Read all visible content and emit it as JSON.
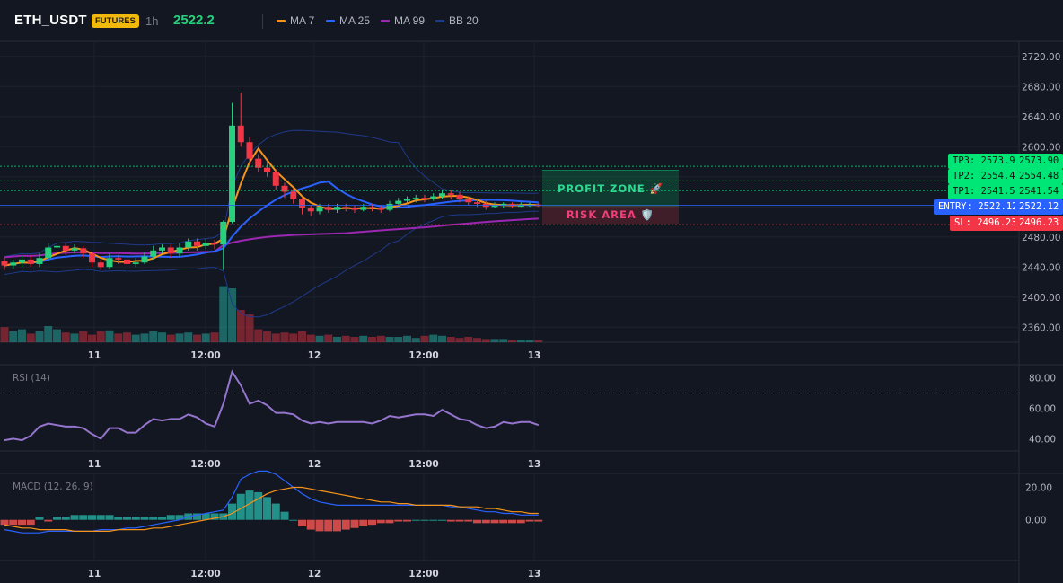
{
  "header": {
    "symbol": "ETH_USDT",
    "badge": "FUTURES",
    "timeframe": "1h",
    "price": "2522.2",
    "legend": [
      {
        "label": "MA 7",
        "color": "#f7931a"
      },
      {
        "label": "MA 25",
        "color": "#2962ff"
      },
      {
        "label": "MA 99",
        "color": "#9c27b0"
      },
      {
        "label": "BB 20",
        "color": "#1e3a8a"
      }
    ]
  },
  "zones": {
    "profit": "PROFIT ZONE 🚀",
    "risk": "RISK AREA 🛡️"
  },
  "levels": {
    "tp3_label": "TP3: 2573.9",
    "tp3_value": "2573.90",
    "tp2_label": "TP2: 2554.48",
    "tp2_value": "2554.48",
    "tp1_label": "TP1: 2541.54",
    "tp1_value": "2541.54",
    "entry_label": "ENTRY: 2522.12",
    "entry_value": "2522.12",
    "sl_label": "SL: 2496.23",
    "sl_value": "2496.23"
  },
  "colors": {
    "up": "#26d07c",
    "down": "#f23645",
    "tp": "#00e676",
    "entry": "#2962ff",
    "sl": "#f23645"
  },
  "chart_data": {
    "type": "candlestick",
    "price_axis": {
      "ticks": [
        "2720.00",
        "2680.00",
        "2640.00",
        "2600.00",
        "2560.00",
        "2520.00",
        "2480.00",
        "2440.00",
        "2400.00",
        "2360.00"
      ],
      "range": [
        2340,
        2740
      ]
    },
    "time_ticks": [
      "11",
      "12:00",
      "12",
      "12:00",
      "13"
    ],
    "rsi": {
      "label": "RSI (14)",
      "ticks": [
        "80.00",
        "60.00",
        "40.00"
      ],
      "range": [
        32,
        88
      ],
      "overbought": 70,
      "values": [
        39,
        40,
        39,
        42,
        48,
        50,
        49,
        48,
        48,
        47,
        43,
        40,
        47,
        47,
        44,
        44,
        49,
        53,
        52,
        53,
        53,
        56,
        54,
        50,
        48,
        63,
        84,
        75,
        63,
        65,
        62,
        57,
        57,
        56,
        52,
        50,
        51,
        50,
        51,
        51,
        51,
        51,
        50,
        52,
        55,
        54,
        55,
        56,
        56,
        55,
        59,
        56,
        53,
        52,
        49,
        47,
        48,
        51,
        50,
        51,
        51,
        49
      ]
    },
    "macd": {
      "label": "MACD (12, 26, 9)",
      "ticks": [
        "20.00",
        "0.00"
      ],
      "range": [
        -25,
        28
      ],
      "macd": [
        -6,
        -7,
        -8,
        -8,
        -8,
        -7,
        -7,
        -7,
        -7,
        -7,
        -7,
        -6,
        -6,
        -6,
        -5,
        -5,
        -4,
        -3,
        -2,
        -1,
        0,
        2,
        3,
        4,
        5,
        6,
        14,
        25,
        28,
        30,
        30,
        28,
        24,
        20,
        16,
        13,
        11,
        10,
        9,
        9,
        9,
        9,
        9,
        9,
        9,
        9,
        9,
        9,
        9,
        9,
        9,
        8,
        8,
        7,
        6,
        5,
        5,
        4,
        4,
        3,
        3,
        3
      ],
      "signal": [
        -3,
        -4,
        -5,
        -5,
        -6,
        -6,
        -6,
        -6,
        -7,
        -7,
        -7,
        -7,
        -7,
        -6,
        -6,
        -6,
        -6,
        -5,
        -5,
        -4,
        -3,
        -2,
        -1,
        0,
        1,
        2,
        4,
        7,
        10,
        13,
        16,
        18,
        19,
        20,
        20,
        19,
        18,
        17,
        16,
        15,
        14,
        13,
        12,
        11,
        11,
        10,
        10,
        9,
        9,
        9,
        9,
        9,
        8,
        8,
        8,
        7,
        7,
        6,
        5,
        5,
        4,
        4
      ],
      "hist": [
        -3,
        -3,
        -3,
        -3,
        2,
        -1,
        2,
        2,
        3,
        3,
        3,
        3,
        3,
        2,
        2,
        2,
        2,
        2,
        2,
        3,
        3,
        4,
        4,
        4,
        4,
        4,
        10,
        16,
        18,
        17,
        14,
        10,
        5,
        0,
        -4,
        -6,
        -7,
        -7,
        -7,
        -6,
        -5,
        -4,
        -3,
        -2,
        -2,
        -1,
        -1,
        0,
        0,
        0,
        0,
        -1,
        -1,
        -1,
        -2,
        -2,
        -2,
        -2,
        -2,
        -2,
        -1,
        -1
      ]
    },
    "candles": [
      [
        2448,
        2442,
        2452,
        2436
      ],
      [
        2442,
        2446,
        2450,
        2438
      ],
      [
        2446,
        2450,
        2455,
        2440
      ],
      [
        2450,
        2444,
        2455,
        2440
      ],
      [
        2444,
        2452,
        2458,
        2440
      ],
      [
        2452,
        2466,
        2472,
        2448
      ],
      [
        2466,
        2468,
        2472,
        2460
      ],
      [
        2468,
        2462,
        2472,
        2456
      ],
      [
        2462,
        2465,
        2470,
        2458
      ],
      [
        2465,
        2458,
        2468,
        2452
      ],
      [
        2458,
        2446,
        2460,
        2440
      ],
      [
        2446,
        2440,
        2450,
        2436
      ],
      [
        2440,
        2452,
        2458,
        2438
      ],
      [
        2452,
        2450,
        2456,
        2444
      ],
      [
        2450,
        2444,
        2454,
        2440
      ],
      [
        2444,
        2446,
        2452,
        2440
      ],
      [
        2446,
        2454,
        2460,
        2444
      ],
      [
        2454,
        2462,
        2468,
        2450
      ],
      [
        2462,
        2466,
        2470,
        2458
      ],
      [
        2466,
        2458,
        2470,
        2452
      ],
      [
        2458,
        2466,
        2472,
        2454
      ],
      [
        2466,
        2474,
        2478,
        2462
      ],
      [
        2474,
        2468,
        2478,
        2462
      ],
      [
        2468,
        2472,
        2478,
        2464
      ],
      [
        2472,
        2470,
        2476,
        2464
      ],
      [
        2470,
        2500,
        2502,
        2436
      ],
      [
        2500,
        2628,
        2658,
        2498
      ],
      [
        2628,
        2606,
        2672,
        2600
      ],
      [
        2606,
        2584,
        2612,
        2576
      ],
      [
        2584,
        2572,
        2590,
        2566
      ],
      [
        2572,
        2566,
        2580,
        2560
      ],
      [
        2566,
        2548,
        2570,
        2542
      ],
      [
        2548,
        2540,
        2552,
        2532
      ],
      [
        2540,
        2530,
        2544,
        2524
      ],
      [
        2530,
        2518,
        2532,
        2510
      ],
      [
        2518,
        2514,
        2522,
        2508
      ],
      [
        2514,
        2520,
        2524,
        2510
      ],
      [
        2520,
        2516,
        2524,
        2512
      ],
      [
        2516,
        2520,
        2524,
        2512
      ],
      [
        2520,
        2518,
        2524,
        2514
      ],
      [
        2518,
        2516,
        2522,
        2512
      ],
      [
        2516,
        2520,
        2524,
        2514
      ],
      [
        2520,
        2518,
        2524,
        2514
      ],
      [
        2518,
        2516,
        2522,
        2512
      ],
      [
        2516,
        2524,
        2528,
        2514
      ],
      [
        2524,
        2528,
        2532,
        2522
      ],
      [
        2528,
        2530,
        2534,
        2524
      ],
      [
        2530,
        2532,
        2536,
        2526
      ],
      [
        2532,
        2530,
        2536,
        2526
      ],
      [
        2530,
        2534,
        2538,
        2528
      ],
      [
        2534,
        2538,
        2542,
        2530
      ],
      [
        2538,
        2536,
        2542,
        2530
      ],
      [
        2536,
        2530,
        2540,
        2526
      ],
      [
        2530,
        2526,
        2534,
        2522
      ],
      [
        2526,
        2524,
        2530,
        2520
      ],
      [
        2524,
        2520,
        2528,
        2516
      ],
      [
        2520,
        2522,
        2526,
        2518
      ],
      [
        2522,
        2524,
        2526,
        2518
      ],
      [
        2524,
        2522,
        2526,
        2518
      ],
      [
        2522,
        2522,
        2526,
        2520
      ],
      [
        2522,
        2523,
        2526,
        2520
      ],
      [
        2523,
        2522,
        2525,
        2520
      ]
    ],
    "volume": [
      14,
      10,
      12,
      8,
      10,
      15,
      12,
      9,
      8,
      10,
      7,
      10,
      11,
      8,
      9,
      7,
      8,
      10,
      9,
      7,
      8,
      9,
      7,
      8,
      9,
      52,
      50,
      30,
      26,
      12,
      10,
      8,
      9,
      8,
      10,
      7,
      6,
      7,
      5,
      6,
      5,
      6,
      5,
      6,
      5,
      5,
      6,
      4,
      6,
      7,
      6,
      5,
      4,
      5,
      4,
      3,
      3,
      3,
      2,
      2,
      2,
      2
    ]
  }
}
